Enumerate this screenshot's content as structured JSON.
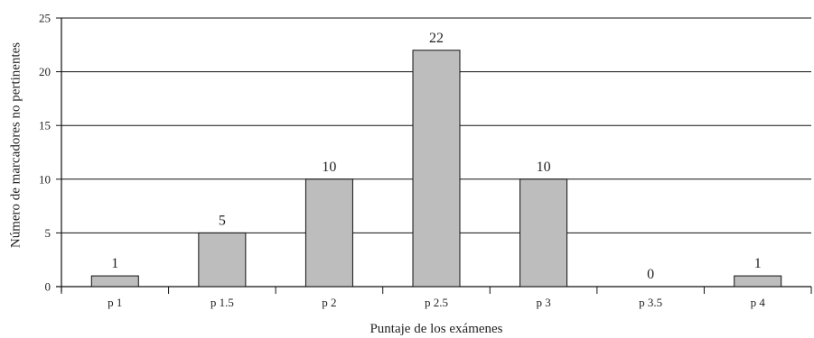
{
  "chart_data": {
    "type": "bar",
    "categories": [
      "p 1",
      "p 1.5",
      "p 2",
      "p 2.5",
      "p 3",
      "p 3.5",
      "p 4"
    ],
    "values": [
      1,
      5,
      10,
      22,
      10,
      0,
      1
    ],
    "data_labels": [
      "1",
      "5",
      "10",
      "22",
      "10",
      "0",
      "1"
    ],
    "xlabel": "Puntaje de los exámenes",
    "ylabel": "Número de marcadores no pertinentes",
    "ylim": [
      0,
      25
    ],
    "yticks": [
      0,
      5,
      10,
      15,
      20,
      25
    ],
    "grid": true,
    "colors": {
      "bar_fill": "#bdbdbd",
      "bar_stroke": "#111111",
      "grid": "#111111"
    }
  }
}
